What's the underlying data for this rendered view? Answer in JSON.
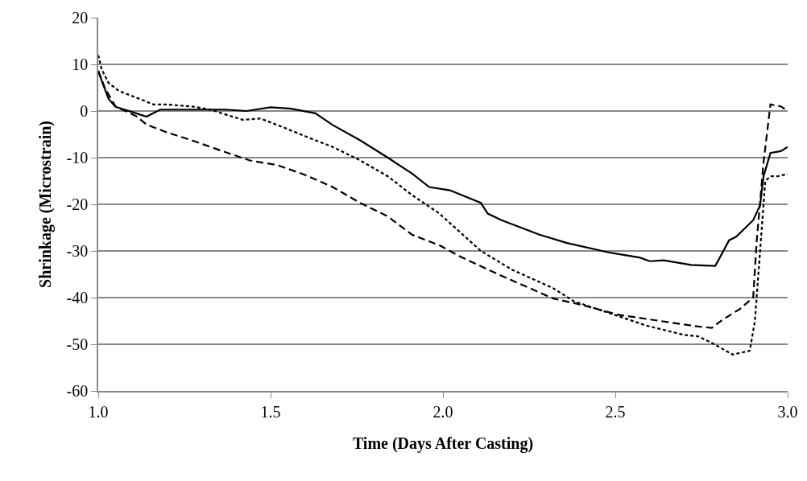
{
  "chart_data": {
    "type": "line",
    "xlabel": "Time (Days After Casting)",
    "ylabel": "Shrinkage (Microstrain)",
    "xlim": [
      1,
      3
    ],
    "xticks": [
      {
        "value": 1,
        "label": "1.0"
      },
      {
        "value": 1.5,
        "label": "1.5"
      },
      {
        "value": 2,
        "label": "2.0"
      },
      {
        "value": 2.5,
        "label": "2.5"
      },
      {
        "value": 3,
        "label": "3.0"
      }
    ],
    "ylim": [
      -60,
      20
    ],
    "yticks": [
      -60,
      -50,
      -40,
      -30,
      -20,
      -10,
      0,
      10,
      20
    ],
    "grid": "y",
    "legend": false,
    "marker": "none",
    "series": [
      {
        "color": "#000000",
        "line_style": "solid",
        "x": [
          1.0,
          1.01,
          1.03,
          1.05,
          1.11,
          1.14,
          1.18,
          1.25,
          1.37,
          1.43,
          1.5,
          1.56,
          1.63,
          1.68,
          1.76,
          1.84,
          1.91,
          1.96,
          2.02,
          2.11,
          2.13,
          2.17,
          2.28,
          2.36,
          2.48,
          2.57,
          2.6,
          2.64,
          2.72,
          2.79,
          2.81,
          2.83,
          2.85,
          2.9,
          2.92,
          2.93,
          2.95,
          2.98,
          3.0
        ],
        "values": [
          8.6,
          6.5,
          2.6,
          0.9,
          -0.5,
          -1.2,
          0.3,
          0.3,
          0.3,
          0,
          0.8,
          0.5,
          -0.5,
          -3,
          -6.3,
          -10,
          -13.4,
          -16.3,
          -17,
          -19.7,
          -22,
          -23.4,
          -26.5,
          -28.3,
          -30.3,
          -31.4,
          -32.2,
          -32,
          -33,
          -33.2,
          -30.5,
          -27.7,
          -27,
          -23.4,
          -20.2,
          -14,
          -9,
          -8.6,
          -7.7
        ]
      },
      {
        "color": "#000000",
        "line_style": "dotted",
        "x": [
          1.0,
          1.01,
          1.03,
          1.06,
          1.12,
          1.16,
          1.2,
          1.28,
          1.33,
          1.38,
          1.42,
          1.47,
          1.52,
          1.6,
          1.68,
          1.76,
          1.84,
          1.91,
          1.99,
          2.05,
          2.11,
          2.2,
          2.32,
          2.38,
          2.47,
          2.59,
          2.7,
          2.74,
          2.78,
          2.84,
          2.89,
          2.905,
          2.92,
          2.935,
          2.95,
          2.97,
          3.0
        ],
        "values": [
          12,
          8.9,
          6,
          4.3,
          2.6,
          1.4,
          1.4,
          0.9,
          0.2,
          -1,
          -1.9,
          -1.6,
          -3,
          -5.4,
          -7.7,
          -10.6,
          -14,
          -18,
          -22,
          -26,
          -30,
          -34,
          -38,
          -40.8,
          -43,
          -46,
          -48,
          -48.3,
          -49.7,
          -52.2,
          -51.4,
          -45,
          -30,
          -15,
          -14,
          -14,
          -13.5
        ]
      },
      {
        "color": "#000000",
        "line_style": "dashed",
        "x": [
          1.0,
          1.02,
          1.05,
          1.11,
          1.14,
          1.2,
          1.28,
          1.36,
          1.44,
          1.52,
          1.6,
          1.68,
          1.76,
          1.84,
          1.91,
          1.99,
          2.05,
          2.16,
          2.32,
          2.4,
          2.51,
          2.63,
          2.74,
          2.78,
          2.81,
          2.86,
          2.9,
          2.91,
          2.93,
          2.95,
          2.98,
          3.0
        ],
        "values": [
          8.6,
          4.8,
          1,
          -1.1,
          -2.9,
          -4.6,
          -6.5,
          -8.6,
          -10.6,
          -11.6,
          -13.7,
          -16.3,
          -19.7,
          -22.6,
          -26.5,
          -28.8,
          -31.2,
          -35,
          -40.2,
          -41.5,
          -43.7,
          -45,
          -46.2,
          -46.5,
          -44.8,
          -42.5,
          -40,
          -28,
          -11,
          1.4,
          1,
          0
        ]
      }
    ]
  }
}
